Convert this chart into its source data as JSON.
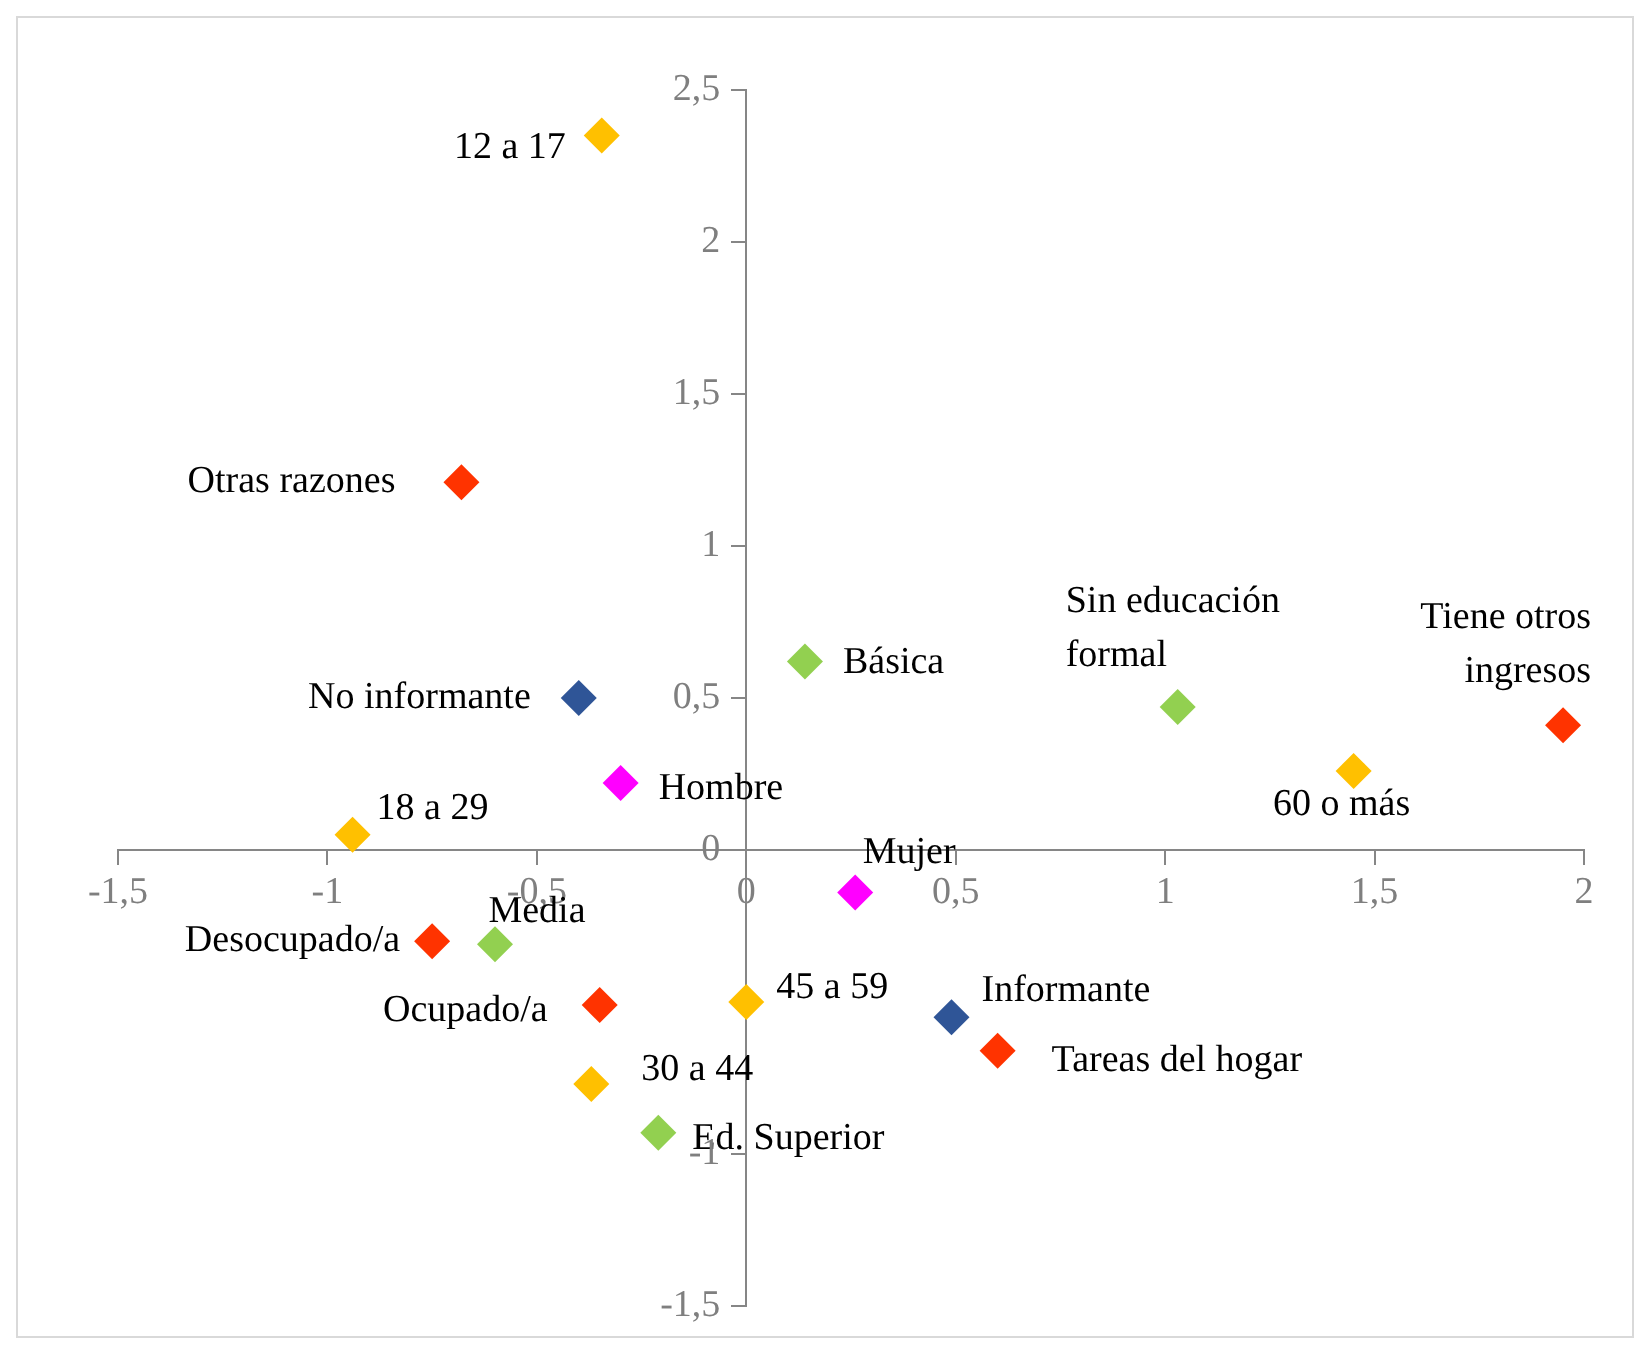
{
  "chart_data": {
    "type": "scatter",
    "marker": "diamond",
    "xlim": [
      -1.5,
      2
    ],
    "ylim": [
      -1.5,
      2.5
    ],
    "xticks": [
      {
        "value": -1.5,
        "label": "-1,5"
      },
      -1,
      {
        "value": -0.5,
        "label": "-0,5"
      },
      0,
      {
        "value": 0.5,
        "label": "0,5"
      },
      1,
      {
        "value": 1.5,
        "label": "1,5"
      },
      2
    ],
    "yticks": [
      {
        "value": -1.5,
        "label": "-1,5"
      },
      -1,
      {
        "value": -0.5,
        "label": null
      },
      0,
      {
        "value": 0.5,
        "label": "0,5"
      },
      1,
      {
        "value": 1.5,
        "label": "1,5"
      },
      2,
      {
        "value": 2.5,
        "label": "2,5"
      }
    ],
    "series": [
      {
        "color": "#ffc000",
        "x": [
          -0.345,
          -0.94,
          -0.37,
          0,
          1.45
        ],
        "values": [
          2.35,
          0.05,
          -0.77,
          -0.5,
          0.26
        ]
      },
      {
        "color": "#ff3300",
        "x": [
          -0.68,
          1.95,
          -0.75,
          -0.35,
          0.6
        ],
        "values": [
          1.21,
          0.41,
          -0.3,
          -0.51,
          -0.66
        ]
      },
      {
        "color": "#92d050",
        "x": [
          0.14,
          1.03,
          -0.6,
          -0.21
        ],
        "values": [
          0.62,
          0.47,
          -0.31,
          -0.93
        ]
      },
      {
        "color": "#2f5597",
        "x": [
          -0.4,
          0.49
        ],
        "values": [
          0.5,
          -0.55
        ]
      },
      {
        "color": "#ff00ff",
        "x": [
          -0.3,
          0.26
        ],
        "values": [
          0.22,
          -0.14
        ]
      }
    ],
    "annotations": [
      {
        "text": "12 a 17",
        "x": -0.345,
        "y": 2.35
      },
      {
        "text": "18 a 29",
        "x": -0.94,
        "y": 0.05
      },
      {
        "text": "30 a 44",
        "x": -0.37,
        "y": -0.77
      },
      {
        "text": "45 a 59",
        "x": 0,
        "y": -0.5
      },
      {
        "text": "60 o más",
        "x": 1.45,
        "y": 0.26
      },
      {
        "text": "Otras razones",
        "x": -0.68,
        "y": 1.21
      },
      {
        "text": "Tiene otros ingresos",
        "x": 1.95,
        "y": 0.41
      },
      {
        "text": "Desocupado/a",
        "x": -0.75,
        "y": -0.3
      },
      {
        "text": "Ocupado/a",
        "x": -0.35,
        "y": -0.51
      },
      {
        "text": "Tareas del hogar",
        "x": 0.6,
        "y": -0.66
      },
      {
        "text": "Básica",
        "x": 0.14,
        "y": 0.62
      },
      {
        "text": "Sin educación formal",
        "x": 1.03,
        "y": 0.47
      },
      {
        "text": "Media",
        "x": -0.6,
        "y": -0.31
      },
      {
        "text": "Ed. Superior",
        "x": -0.21,
        "y": -0.93
      },
      {
        "text": "No informante",
        "x": -0.4,
        "y": 0.5
      },
      {
        "text": "Informante",
        "x": 0.49,
        "y": -0.55
      },
      {
        "text": "Hombre",
        "x": -0.3,
        "y": 0.22
      },
      {
        "text": "Mujer",
        "x": 0.26,
        "y": -0.14
      }
    ]
  }
}
